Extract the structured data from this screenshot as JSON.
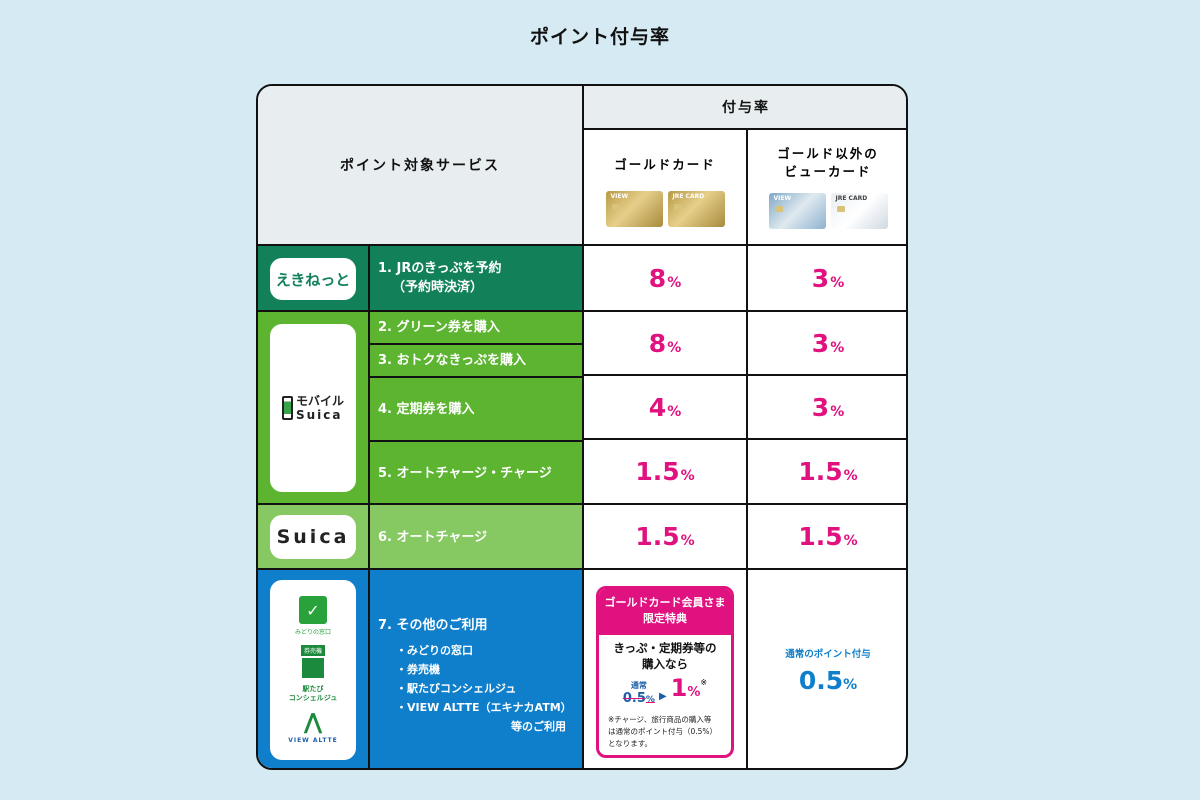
{
  "title": "ポイント付与率",
  "header": {
    "service_col": "ポイント対象サービス",
    "rate_col": "付与率",
    "gold_col": "ゴールドカード",
    "other_col_line1": "ゴールド以外の",
    "other_col_line2": "ビューカード"
  },
  "cards": {
    "view_name": "VIEW",
    "jre_name": "JRE CARD"
  },
  "logos": {
    "ekinet": "えきねっと",
    "mobile_suica_1": "モバイル",
    "mobile_suica_2": "Suica",
    "suica": "Suica",
    "midori": "みどりの窓口",
    "kenbaiki": "券売機",
    "concierge_1": "駅たび",
    "concierge_2": "コンシェルジュ",
    "view_altte": "VIEW ALTTE"
  },
  "rows": {
    "r1_line1": "1.  JRのきっぷを予約",
    "r1_line2": "（予約時決済）",
    "r2": "2.  グリーン券を購入",
    "r3": "3.  おトクなきっぷを購入",
    "r4": "4.  定期券を購入",
    "r5": "5.  オートチャージ・チャージ",
    "r6": "6.  オートチャージ",
    "r7_title": "7.  その他のご利用",
    "r7_items": [
      "・みどりの窓口",
      "・券売機",
      "・駅たびコンシェルジュ",
      "・VIEW ALTTE（エキナカATM）"
    ],
    "r7_tail": "等のご利用"
  },
  "rates": {
    "unit": "%",
    "ekinet_gold": "8",
    "ekinet_other": "3",
    "green_gold": "8",
    "green_other": "3",
    "teiki_gold": "4",
    "teiki_other": "3",
    "mobile_charge_gold": "1.5",
    "mobile_charge_other": "1.5",
    "suica_gold": "1.5",
    "suica_other": "1.5",
    "other_other": "0.5"
  },
  "special": {
    "head_line1": "ゴールドカード会員さま",
    "head_line2": "限定特典",
    "body_line1": "きっぷ・定期券等の",
    "body_line2": "購入なら",
    "normal_label": "通常",
    "normal_rate": "0.5",
    "arrow": "▶",
    "new_rate": "1",
    "mark": "※",
    "note_line1": "※チャージ、旅行商品の購入等",
    "note_line2": "は通常のポイント付与（0.5%）",
    "note_line3": "となります。"
  },
  "other_label": "通常のポイント付与",
  "colors": {
    "background": "#d6eaf4",
    "ekinet_green": "#12815a",
    "mobile_green": "#5cb431",
    "suica_green": "#86c862",
    "other_blue": "#0f7fcb",
    "pink": "#e0127f"
  }
}
